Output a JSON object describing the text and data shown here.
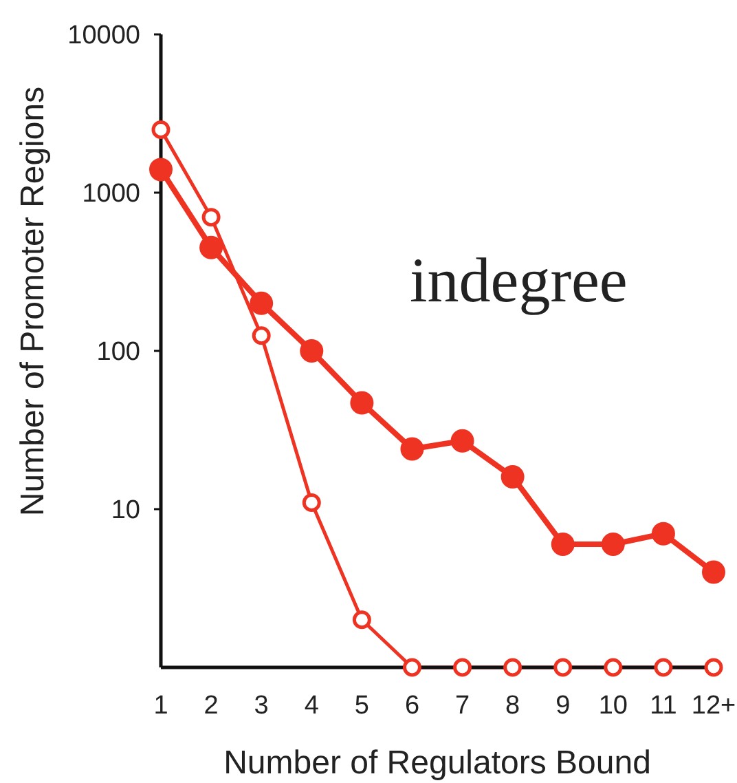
{
  "chart_data": {
    "type": "line",
    "xlabel": "Number of Regulators Bound",
    "ylabel": "Number of Promoter Regions",
    "annotations": [
      "indegree"
    ],
    "categories": [
      "1",
      "2",
      "3",
      "4",
      "5",
      "6",
      "7",
      "8",
      "9",
      "10",
      "11",
      "12+"
    ],
    "series": [
      {
        "color": "#ee3322",
        "values": [
          1400,
          450,
          200,
          100,
          47,
          24,
          27,
          16,
          6,
          6,
          7,
          4
        ]
      },
      {
        "color": "#ee3322",
        "values": [
          2500,
          700,
          125,
          11,
          2,
          1,
          1,
          1,
          1,
          1,
          1,
          1
        ]
      }
    ],
    "ylim": [
      1,
      10000
    ],
    "yticks": [
      10,
      100,
      1000,
      10000
    ],
    "log": true,
    "marker": "circle"
  }
}
